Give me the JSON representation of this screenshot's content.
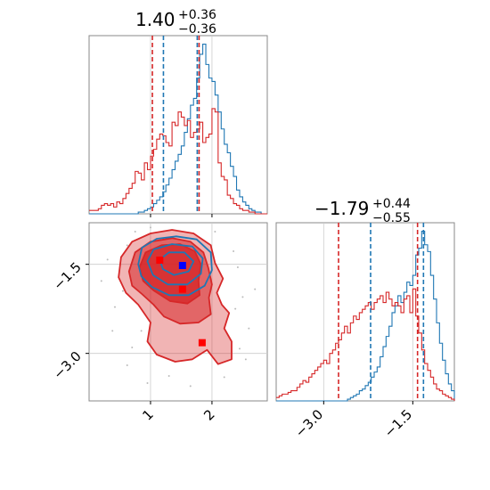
{
  "colors": {
    "series_a": "#1f77b4",
    "series_b": "#d62728",
    "marker_a": "#0000ff",
    "marker_b": "#ff0000",
    "grid": "#cccccc",
    "frame": "#888888"
  },
  "titles": [
    {
      "main": "1.40",
      "sup": "+0.36",
      "sub": "−0.36"
    },
    {
      "main": "−1.79",
      "sup": "+0.44",
      "sub": "−0.55"
    }
  ],
  "chart_data": [
    {
      "type": "histogram",
      "panel": "top-left",
      "xlim": [
        0.0,
        2.9
      ],
      "grid": true,
      "quantile_lines": {
        "blue": [
          1.21,
          1.76
        ],
        "red": [
          1.03,
          1.79
        ]
      },
      "series": [
        {
          "color": "blue",
          "bins": {
            "start": 0.0,
            "width": 0.05
          },
          "counts": [
            0,
            0,
            0,
            0,
            0,
            0,
            0,
            0,
            0,
            0,
            0,
            0,
            0,
            0,
            0,
            0,
            1,
            1,
            2,
            3,
            4,
            6,
            8,
            10,
            13,
            17,
            21,
            26,
            31,
            35,
            40,
            48,
            56,
            64,
            68,
            80,
            94,
            100,
            88,
            80,
            78,
            70,
            60,
            50,
            41,
            36,
            28,
            22,
            14,
            10,
            7,
            5,
            3,
            2,
            1,
            1,
            0,
            0
          ]
        },
        {
          "color": "red",
          "bins": {
            "start": 0.0,
            "width": 0.05
          },
          "counts": [
            2,
            2,
            2,
            3,
            5,
            6,
            5,
            6,
            4,
            7,
            6,
            9,
            12,
            15,
            18,
            25,
            24,
            20,
            30,
            26,
            34,
            38,
            44,
            47,
            46,
            42,
            40,
            54,
            52,
            60,
            57,
            52,
            55,
            45,
            48,
            50,
            54,
            42,
            45,
            47,
            62,
            60,
            30,
            22,
            20,
            11,
            9,
            6,
            5,
            3,
            2,
            2,
            1,
            1,
            0,
            0,
            0,
            0
          ]
        }
      ]
    },
    {
      "type": "scatter",
      "panel": "bottom-left",
      "xlim": [
        0.0,
        2.9
      ],
      "ylim": [
        -3.8,
        -0.8
      ],
      "xticks": [
        "1",
        "2"
      ],
      "yticks": [
        "−1.5",
        "−3.0"
      ],
      "xtick_values": [
        1,
        2
      ],
      "ytick_values": [
        -1.5,
        -3.0
      ],
      "grid": true,
      "markers": [
        {
          "color": "blue",
          "x": 1.52,
          "y": -1.52
        },
        {
          "color": "red",
          "x": 1.15,
          "y": -1.43
        },
        {
          "color": "red",
          "x": 1.52,
          "y": -1.92
        },
        {
          "color": "red",
          "x": 1.84,
          "y": -2.82
        }
      ],
      "contours": {
        "red": [
          [
            [
              0.48,
              -1.72
            ],
            [
              0.52,
              -1.38
            ],
            [
              0.7,
              -1.12
            ],
            [
              1.0,
              -0.98
            ],
            [
              1.35,
              -0.92
            ],
            [
              1.7,
              -0.98
            ],
            [
              1.98,
              -1.18
            ],
            [
              2.05,
              -1.48
            ],
            [
              2.18,
              -1.74
            ],
            [
              2.08,
              -1.98
            ],
            [
              2.16,
              -2.18
            ],
            [
              2.28,
              -2.32
            ],
            [
              2.2,
              -2.58
            ],
            [
              2.32,
              -2.8
            ],
            [
              2.32,
              -3.1
            ],
            [
              2.1,
              -3.18
            ],
            [
              1.92,
              -2.94
            ],
            [
              1.68,
              -3.1
            ],
            [
              1.4,
              -3.14
            ],
            [
              1.1,
              -3.02
            ],
            [
              0.95,
              -2.8
            ],
            [
              1.0,
              -2.48
            ],
            [
              0.8,
              -2.18
            ],
            [
              0.6,
              -1.98
            ]
          ],
          [
            [
              0.65,
              -1.62
            ],
            [
              0.75,
              -1.3
            ],
            [
              1.0,
              -1.12
            ],
            [
              1.35,
              -1.06
            ],
            [
              1.65,
              -1.12
            ],
            [
              1.86,
              -1.3
            ],
            [
              1.94,
              -1.56
            ],
            [
              2.0,
              -1.84
            ],
            [
              1.95,
              -2.06
            ],
            [
              1.98,
              -2.34
            ],
            [
              1.78,
              -2.48
            ],
            [
              1.48,
              -2.5
            ],
            [
              1.22,
              -2.38
            ],
            [
              1.05,
              -2.18
            ],
            [
              0.86,
              -2.0
            ],
            [
              0.7,
              -1.86
            ]
          ],
          [
            [
              0.82,
              -1.55
            ],
            [
              0.92,
              -1.3
            ],
            [
              1.18,
              -1.18
            ],
            [
              1.48,
              -1.16
            ],
            [
              1.72,
              -1.28
            ],
            [
              1.82,
              -1.5
            ],
            [
              1.78,
              -1.78
            ],
            [
              1.8,
              -2.02
            ],
            [
              1.6,
              -2.16
            ],
            [
              1.32,
              -2.12
            ],
            [
              1.05,
              -1.94
            ],
            [
              0.88,
              -1.78
            ]
          ]
        ],
        "blue": [
          [
            [
              0.8,
              -1.5
            ],
            [
              0.86,
              -1.22
            ],
            [
              1.1,
              -1.07
            ],
            [
              1.42,
              -1.03
            ],
            [
              1.75,
              -1.08
            ],
            [
              1.98,
              -1.3
            ],
            [
              2.0,
              -1.6
            ],
            [
              1.88,
              -1.86
            ],
            [
              1.62,
              -2.02
            ],
            [
              1.3,
              -2.02
            ],
            [
              1.02,
              -1.88
            ],
            [
              0.85,
              -1.7
            ]
          ],
          [
            [
              0.95,
              -1.45
            ],
            [
              1.05,
              -1.25
            ],
            [
              1.35,
              -1.16
            ],
            [
              1.68,
              -1.2
            ],
            [
              1.85,
              -1.4
            ],
            [
              1.82,
              -1.66
            ],
            [
              1.6,
              -1.84
            ],
            [
              1.28,
              -1.84
            ],
            [
              1.04,
              -1.68
            ]
          ],
          [
            [
              1.15,
              -1.42
            ],
            [
              1.3,
              -1.3
            ],
            [
              1.55,
              -1.3
            ],
            [
              1.7,
              -1.45
            ],
            [
              1.62,
              -1.62
            ],
            [
              1.38,
              -1.68
            ],
            [
              1.2,
              -1.58
            ]
          ]
        ]
      },
      "scatter_points": [
        [
          0.62,
          -1.18
        ],
        [
          0.55,
          -1.95
        ],
        [
          0.42,
          -2.22
        ],
        [
          0.3,
          -1.42
        ],
        [
          0.75,
          -0.95
        ],
        [
          2.42,
          -1.55
        ],
        [
          2.35,
          -1.28
        ],
        [
          2.5,
          -2.05
        ],
        [
          2.6,
          -2.58
        ],
        [
          2.45,
          -2.92
        ],
        [
          0.85,
          -2.62
        ],
        [
          0.7,
          -2.9
        ],
        [
          1.3,
          -3.38
        ],
        [
          2.2,
          -3.4
        ],
        [
          0.95,
          -3.5
        ],
        [
          0.38,
          -2.62
        ],
        [
          2.7,
          -1.92
        ],
        [
          1.0,
          -0.88
        ],
        [
          2.05,
          -0.95
        ],
        [
          0.2,
          -1.78
        ],
        [
          2.55,
          -3.1
        ],
        [
          1.65,
          -3.55
        ],
        [
          0.62,
          -3.2
        ],
        [
          2.38,
          -2.25
        ]
      ]
    },
    {
      "type": "histogram",
      "panel": "bottom-right",
      "xlim": [
        -3.8,
        -0.8
      ],
      "xticks": [
        "−3.0",
        "−1.5"
      ],
      "xtick_values": [
        -3.0,
        -1.5
      ],
      "grid": true,
      "quantile_lines": {
        "blue": [
          -2.21,
          -1.32
        ],
        "red": [
          -2.75,
          -1.42
        ]
      },
      "series": [
        {
          "color": "blue",
          "bins": {
            "start": -3.8,
            "width": 0.05
          },
          "counts": [
            0,
            0,
            0,
            0,
            0,
            0,
            0,
            0,
            0,
            0,
            0,
            0,
            0,
            0,
            0,
            0,
            0,
            0,
            0,
            0,
            0,
            0,
            0,
            0,
            1,
            2,
            3,
            4,
            6,
            7,
            9,
            11,
            14,
            17,
            20,
            26,
            32,
            38,
            44,
            52,
            56,
            62,
            58,
            64,
            70,
            68,
            74,
            86,
            90,
            100,
            92,
            88,
            74,
            60,
            46,
            34,
            24,
            16,
            10,
            6,
            3,
            2,
            1,
            0
          ]
        },
        {
          "color": "red",
          "bins": {
            "start": -3.8,
            "width": 0.05
          },
          "counts": [
            2,
            3,
            4,
            4,
            5,
            6,
            6,
            8,
            10,
            12,
            11,
            14,
            16,
            18,
            20,
            22,
            24,
            22,
            28,
            30,
            34,
            36,
            40,
            44,
            40,
            46,
            50,
            48,
            52,
            54,
            56,
            58,
            54,
            58,
            60,
            62,
            58,
            64,
            60,
            56,
            58,
            56,
            52,
            60,
            62,
            52,
            66,
            50,
            40,
            30,
            22,
            18,
            14,
            10,
            7,
            6,
            4,
            3,
            2,
            1,
            1,
            0,
            0,
            0
          ]
        }
      ]
    }
  ]
}
